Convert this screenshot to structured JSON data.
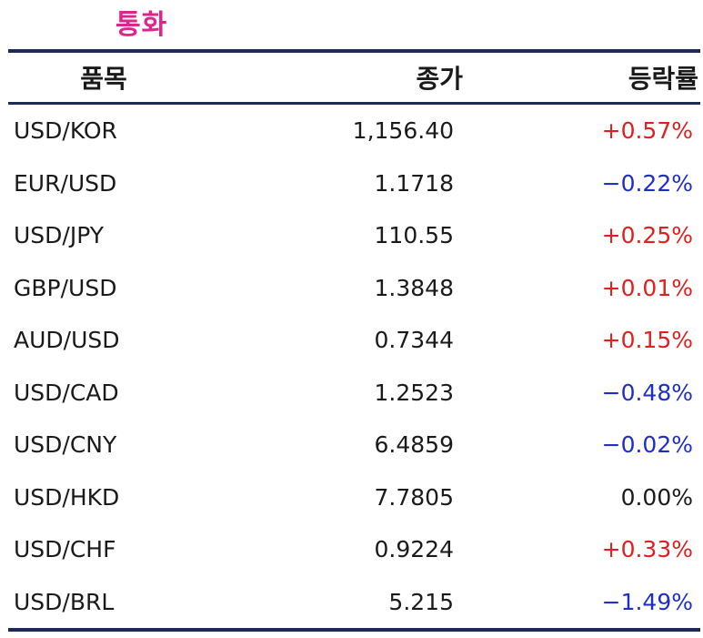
{
  "title": "통화",
  "colors": {
    "title": "#e0248c",
    "rule": "#1d2a55",
    "positive": "#e02020",
    "negative": "#1f2fc4",
    "neutral": "#1a1a1a"
  },
  "table": {
    "headers": {
      "item": "품목",
      "close": "종가",
      "change": "등락률"
    },
    "rows": [
      {
        "item": "USD/KOR",
        "close": "1,156.40",
        "change": "+0.57%",
        "direction": "pos"
      },
      {
        "item": "EUR/USD",
        "close": "1.1718",
        "change": "−0.22%",
        "direction": "neg"
      },
      {
        "item": "USD/JPY",
        "close": "110.55",
        "change": "+0.25%",
        "direction": "pos"
      },
      {
        "item": "GBP/USD",
        "close": "1.3848",
        "change": "+0.01%",
        "direction": "pos"
      },
      {
        "item": "AUD/USD",
        "close": "0.7344",
        "change": "+0.15%",
        "direction": "pos"
      },
      {
        "item": "USD/CAD",
        "close": "1.2523",
        "change": "−0.48%",
        "direction": "neg"
      },
      {
        "item": "USD/CNY",
        "close": "6.4859",
        "change": "−0.02%",
        "direction": "neg"
      },
      {
        "item": "USD/HKD",
        "close": "7.7805",
        "change": "0.00%",
        "direction": "flat"
      },
      {
        "item": "USD/CHF",
        "close": "0.9224",
        "change": "+0.33%",
        "direction": "pos"
      },
      {
        "item": "USD/BRL",
        "close": "5.215",
        "change": "−1.49%",
        "direction": "neg"
      }
    ]
  }
}
